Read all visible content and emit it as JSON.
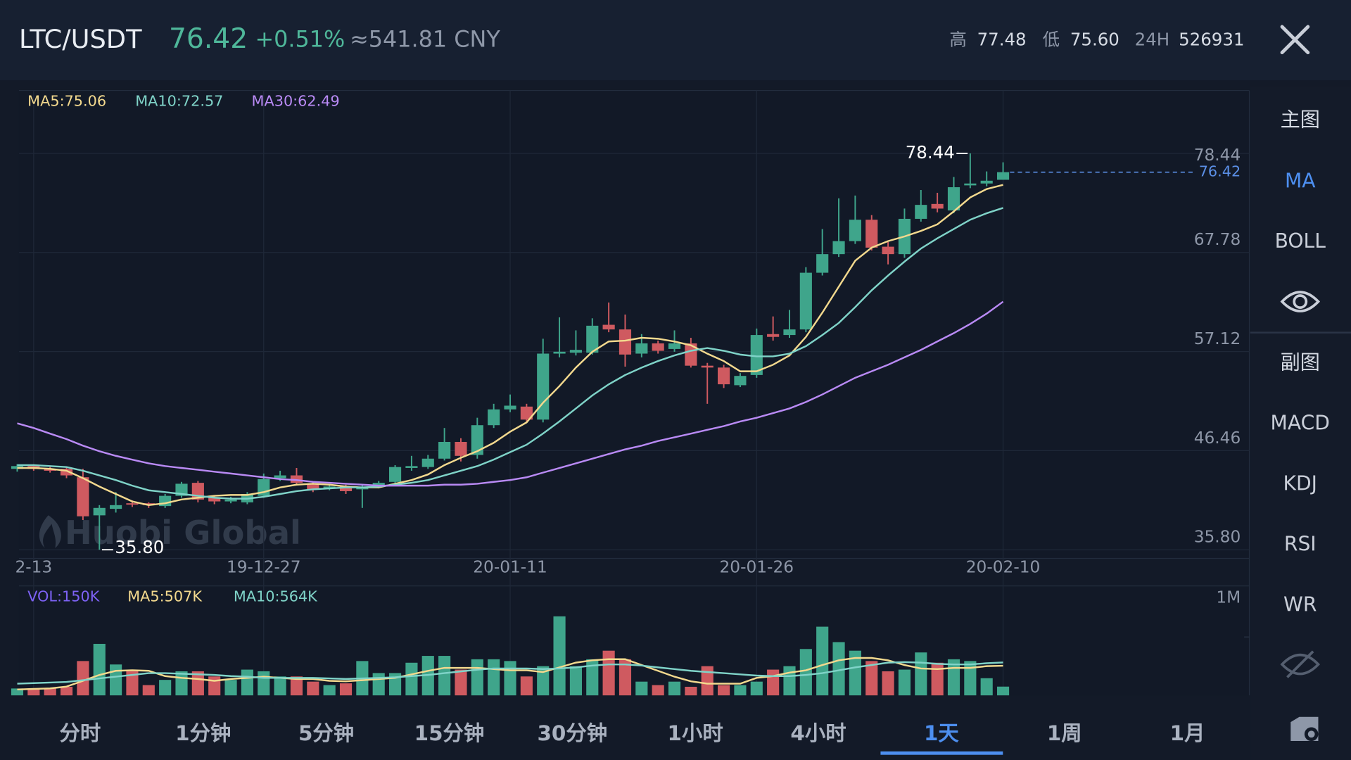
{
  "header": {
    "pair": "LTC/USDT",
    "price": "76.42",
    "change": "+0.51%",
    "cny": "≈541.81 CNY",
    "high_label": "高",
    "high": "77.48",
    "low_label": "低",
    "low": "75.60",
    "vol_label": "24H",
    "vol": "526931"
  },
  "watermark": "Huobi Global",
  "side_menu": {
    "main": {
      "title": "主图",
      "items": [
        "MA",
        "BOLL"
      ],
      "active": 0
    },
    "sub": {
      "title": "副图",
      "items": [
        "MACD",
        "KDJ",
        "RSI",
        "WR"
      ]
    }
  },
  "timeframes": {
    "items": [
      "分时",
      "1分钟",
      "5分钟",
      "15分钟",
      "30分钟",
      "1小时",
      "4小时",
      "1天",
      "1周",
      "1月"
    ],
    "active": 7
  },
  "chart_data": [
    {
      "type": "candlestick",
      "categories": [
        null,
        "2-13",
        null,
        null,
        null,
        null,
        null,
        null,
        null,
        null,
        null,
        null,
        null,
        null,
        null,
        "19-12-27",
        null,
        null,
        null,
        null,
        null,
        null,
        null,
        null,
        null,
        null,
        null,
        null,
        null,
        null,
        "20-01-11",
        null,
        null,
        null,
        null,
        null,
        null,
        null,
        null,
        null,
        null,
        null,
        null,
        null,
        null,
        "20-01-26",
        null,
        null,
        null,
        null,
        null,
        null,
        null,
        null,
        null,
        null,
        null,
        null,
        null,
        null,
        "20-02-10"
      ],
      "open": [
        44.5,
        44.8,
        44.5,
        44.5,
        43.6,
        39.5,
        40.2,
        40.8,
        40.8,
        40.5,
        41.6,
        43.0,
        41.4,
        41.0,
        40.9,
        41.6,
        43.5,
        43.8,
        42.9,
        42.4,
        42.6,
        42.3,
        42.6,
        43.1,
        44.6,
        44.7,
        45.6,
        47.4,
        46.0,
        49.2,
        50.9,
        51.2,
        49.8,
        56.9,
        57.0,
        57.0,
        60.0,
        59.5,
        56.9,
        58.0,
        57.4,
        58.0,
        55.6,
        55.4,
        53.5,
        54.6,
        59.0,
        58.9,
        59.5,
        65.6,
        67.6,
        69.0,
        71.3,
        68.4,
        67.6,
        71.4,
        73.0,
        72.3,
        75.0,
        75.2,
        75.6
      ],
      "high": [
        45.0,
        45.0,
        44.7,
        44.7,
        44.5,
        40.6,
        42.0,
        41.1,
        40.9,
        41.8,
        43.1,
        43.2,
        41.6,
        41.5,
        42.0,
        44.0,
        44.3,
        44.6,
        43.1,
        42.8,
        42.8,
        42.8,
        43.2,
        44.9,
        45.9,
        46.0,
        48.9,
        47.8,
        50.0,
        51.5,
        52.5,
        51.5,
        58.5,
        60.8,
        59.4,
        60.7,
        62.4,
        61.1,
        59.0,
        58.3,
        59.4,
        58.6,
        55.9,
        55.7,
        54.8,
        59.6,
        60.9,
        61.6,
        66.2,
        70.3,
        73.6,
        73.9,
        71.8,
        68.9,
        72.5,
        74.5,
        74.2,
        75.9,
        78.44,
        76.5,
        77.48
      ],
      "low": [
        44.2,
        44.3,
        44.1,
        43.5,
        39.0,
        35.8,
        39.8,
        40.4,
        40.3,
        40.3,
        41.4,
        40.9,
        40.7,
        40.8,
        40.7,
        41.4,
        43.2,
        42.8,
        42.0,
        42.2,
        41.8,
        40.3,
        42.4,
        42.9,
        44.3,
        44.5,
        45.4,
        45.3,
        45.6,
        48.9,
        50.6,
        49.5,
        49.5,
        56.5,
        56.7,
        56.8,
        59.2,
        55.5,
        56.5,
        56.9,
        57.1,
        55.4,
        51.5,
        53.2,
        53.3,
        54.3,
        58.3,
        58.6,
        59.2,
        65.3,
        67.3,
        68.7,
        68.0,
        66.5,
        67.2,
        71.1,
        72.1,
        72.0,
        74.7,
        74.9,
        75.6
      ],
      "close": [
        44.8,
        44.5,
        44.3,
        43.8,
        39.4,
        40.3,
        40.6,
        40.7,
        40.6,
        41.6,
        42.9,
        41.2,
        41.0,
        41.2,
        41.8,
        43.4,
        43.8,
        43.0,
        42.3,
        42.6,
        42.1,
        42.6,
        43.0,
        44.7,
        44.8,
        45.6,
        47.4,
        45.9,
        49.2,
        50.9,
        51.3,
        49.8,
        56.9,
        57.1,
        57.3,
        59.9,
        59.5,
        56.8,
        58.0,
        57.2,
        58.0,
        55.6,
        55.4,
        53.6,
        54.5,
        58.9,
        58.7,
        59.5,
        65.6,
        67.6,
        69.0,
        71.3,
        68.3,
        67.6,
        71.4,
        72.9,
        72.5,
        74.8,
        75.2,
        75.5,
        76.42
      ],
      "low_value_label": "35.80",
      "up_color": "#3fa58b",
      "down_color": "#cf5a60",
      "last_price_color": "#5b8fe6",
      "series": [
        {
          "name": "MA5:75.06",
          "color": "#f3d98e",
          "values": [
            44.6,
            44.6,
            44.5,
            44.3,
            43.5,
            42.6,
            41.8,
            41.0,
            40.6,
            40.8,
            41.2,
            41.4,
            41.6,
            41.7,
            41.7,
            42.0,
            42.5,
            42.8,
            42.9,
            42.8,
            42.6,
            42.5,
            42.5,
            42.9,
            43.3,
            43.9,
            44.9,
            45.7,
            46.4,
            47.3,
            48.5,
            49.5,
            51.6,
            53.4,
            55.4,
            57.1,
            58.2,
            58.3,
            58.6,
            58.5,
            58.2,
            57.8,
            56.9,
            56.1,
            55.0,
            55.0,
            55.7,
            56.7,
            58.7,
            61.3,
            64.1,
            66.9,
            68.3,
            69.0,
            69.5,
            70.1,
            70.8,
            72.2,
            73.7,
            74.6,
            75.06
          ]
        },
        {
          "name": "MA10:72.57",
          "color": "#7fd3c8",
          "values": [
            44.9,
            44.9,
            44.8,
            44.7,
            44.3,
            43.8,
            43.3,
            42.7,
            42.2,
            42.0,
            41.8,
            41.6,
            41.4,
            41.3,
            41.3,
            41.5,
            41.8,
            42.1,
            42.3,
            42.4,
            42.5,
            42.5,
            42.6,
            42.8,
            43.0,
            43.3,
            43.8,
            44.3,
            44.8,
            45.5,
            46.3,
            47.1,
            48.3,
            49.6,
            51.0,
            52.4,
            53.6,
            54.6,
            55.4,
            56.1,
            56.7,
            57.2,
            57.5,
            57.2,
            56.8,
            56.6,
            56.6,
            56.9,
            57.7,
            58.9,
            60.2,
            61.9,
            63.7,
            65.3,
            66.8,
            68.2,
            69.3,
            70.3,
            71.3,
            72.0,
            72.57
          ]
        },
        {
          "name": "MA30:62.49",
          "color": "#b98af5",
          "values": [
            49.4,
            48.9,
            48.3,
            47.7,
            47.0,
            46.4,
            45.9,
            45.5,
            45.1,
            44.8,
            44.6,
            44.4,
            44.2,
            44.0,
            43.8,
            43.6,
            43.4,
            43.3,
            43.1,
            43.0,
            42.9,
            42.8,
            42.7,
            42.7,
            42.7,
            42.7,
            42.8,
            42.8,
            42.9,
            43.1,
            43.3,
            43.6,
            44.1,
            44.6,
            45.1,
            45.6,
            46.1,
            46.6,
            47.0,
            47.5,
            47.9,
            48.3,
            48.7,
            49.1,
            49.6,
            50.0,
            50.5,
            51.0,
            51.7,
            52.5,
            53.4,
            54.3,
            55.0,
            55.7,
            56.5,
            57.3,
            58.2,
            59.1,
            60.1,
            61.2,
            62.49
          ]
        }
      ],
      "ylim": [
        35.8,
        78.44
      ],
      "yticks": [
        {
          "value": 35.8,
          "label": "35.80"
        },
        46.46,
        57.12,
        67.78,
        78.44
      ],
      "grid": true
    },
    {
      "type": "bar",
      "title": "VOL:150K",
      "title_color": "#7d62f5",
      "values": [
        118000,
        118000,
        118000,
        147000,
        588000,
        882000,
        529000,
        412000,
        176000,
        265000,
        412000,
        412000,
        324000,
        265000,
        441000,
        412000,
        324000,
        324000,
        235000,
        176000,
        206000,
        588000,
        382000,
        382000,
        559000,
        676000,
        676000,
        441000,
        618000,
        618000,
        588000,
        324000,
        500000,
        1353000,
        500000,
        618000,
        765000,
        618000,
        235000,
        176000,
        235000,
        147000,
        500000,
        176000,
        176000,
        235000,
        441000,
        500000,
        794000,
        1176000,
        912000,
        765000,
        588000,
        412000,
        441000,
        735000,
        559000,
        618000,
        588000,
        294000,
        150000
      ],
      "series": [
        {
          "name": "MA5:507K",
          "color": "#f3d98e",
          "values": [
            100000,
            110000,
            120000,
            150000,
            250000,
            350000,
            420000,
            430000,
            420000,
            330000,
            300000,
            280000,
            250000,
            280000,
            300000,
            320000,
            300000,
            280000,
            280000,
            250000,
            240000,
            260000,
            280000,
            300000,
            360000,
            420000,
            470000,
            470000,
            470000,
            450000,
            430000,
            430000,
            400000,
            480000,
            560000,
            600000,
            620000,
            620000,
            520000,
            420000,
            320000,
            240000,
            200000,
            200000,
            200000,
            300000,
            330000,
            390000,
            430000,
            520000,
            600000,
            640000,
            640000,
            600000,
            520000,
            460000,
            450000,
            470000,
            470000,
            500000,
            507000
          ]
        },
        {
          "name": "MA10:564K",
          "color": "#7fd3c8",
          "values": [
            200000,
            210000,
            220000,
            230000,
            260000,
            290000,
            320000,
            350000,
            380000,
            380000,
            370000,
            360000,
            350000,
            330000,
            320000,
            300000,
            300000,
            300000,
            300000,
            290000,
            280000,
            290000,
            300000,
            310000,
            330000,
            350000,
            380000,
            410000,
            440000,
            460000,
            460000,
            460000,
            450000,
            460000,
            480000,
            510000,
            530000,
            530000,
            510000,
            480000,
            450000,
            420000,
            400000,
            380000,
            360000,
            340000,
            330000,
            330000,
            350000,
            380000,
            430000,
            480000,
            520000,
            560000,
            570000,
            560000,
            540000,
            530000,
            530000,
            550000,
            564000
          ]
        }
      ],
      "ylim": [
        0,
        1800000
      ],
      "yticks": [
        {
          "value": 1000000,
          "label": "1M"
        }
      ]
    }
  ]
}
